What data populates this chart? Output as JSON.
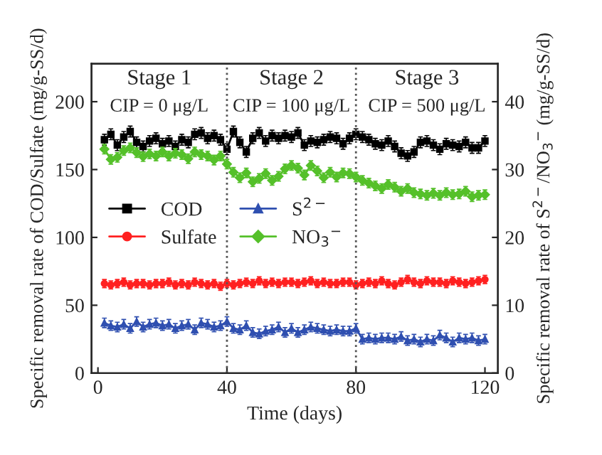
{
  "chart_data": {
    "type": "line",
    "xlabel": "Time (days)",
    "ylabel": "Specific removal rate of COD/Sulfate (mg/g-SS/d)",
    "y2label": "Specific removal rate of S$^{2−}$/NO$_{3}$$^{−}$ (mg/g-SS/d)",
    "x": [
      2,
      4,
      6,
      8,
      10,
      12,
      14,
      16,
      18,
      20,
      22,
      24,
      26,
      28,
      30,
      32,
      34,
      36,
      38,
      40,
      42,
      44,
      46,
      48,
      50,
      52,
      54,
      56,
      58,
      60,
      62,
      64,
      66,
      68,
      70,
      72,
      74,
      76,
      78,
      80,
      82,
      84,
      86,
      88,
      90,
      92,
      94,
      96,
      98,
      100,
      102,
      104,
      106,
      108,
      110,
      112,
      114,
      116,
      118,
      120
    ],
    "xlim": [
      -2,
      124
    ],
    "xticks": [
      0,
      40,
      80,
      120
    ],
    "ylim": [
      0,
      228
    ],
    "yticks": [
      0,
      50,
      100,
      150,
      200
    ],
    "y2lim": [
      0,
      45.6
    ],
    "y2ticks": [
      0,
      10,
      20,
      30,
      40
    ],
    "series": [
      {
        "name": "COD",
        "color": "#000000",
        "marker": "square",
        "errors": [
          4,
          4,
          4,
          4,
          4,
          4,
          4,
          4,
          4,
          4,
          4,
          4,
          4,
          4,
          4,
          4,
          4,
          4,
          4,
          4,
          4,
          4,
          4,
          4,
          4,
          4,
          4,
          4,
          4,
          4,
          4,
          4,
          4,
          4,
          4,
          4,
          4,
          4,
          4,
          4,
          4,
          4,
          4,
          4,
          4,
          4,
          4,
          4,
          4,
          4,
          4,
          4,
          4,
          4,
          4,
          4,
          4,
          4,
          4,
          4
        ],
        "values": [
          172,
          176,
          168,
          174,
          178,
          170,
          167,
          171,
          173,
          169,
          171,
          167,
          172,
          170,
          176,
          177,
          173,
          175,
          172,
          165,
          178,
          170,
          163,
          173,
          177,
          171,
          175,
          173,
          175,
          174,
          177,
          168,
          171,
          170,
          172,
          174,
          173,
          169,
          173,
          176,
          174,
          172,
          169,
          168,
          171,
          167,
          162,
          160,
          163,
          170,
          171,
          168,
          165,
          169,
          168,
          167,
          170,
          166,
          166,
          171
        ]
      },
      {
        "name": "Sulfate",
        "color": "#ff2020",
        "marker": "circle",
        "errors": [
          3,
          3,
          3,
          3,
          3,
          3,
          3,
          3,
          3,
          3,
          3,
          3,
          3,
          3,
          3,
          3,
          3,
          3,
          3,
          3,
          3,
          3,
          3,
          3,
          3,
          3,
          3,
          3,
          3,
          3,
          3,
          3,
          3,
          3,
          3,
          3,
          3,
          3,
          3,
          3,
          3,
          3,
          3,
          3,
          3,
          3,
          3,
          3,
          3,
          3,
          3,
          3,
          3,
          3,
          3,
          3,
          3,
          3,
          3,
          3
        ],
        "values": [
          66,
          65,
          66,
          67,
          65,
          66,
          66,
          65,
          66,
          66,
          67,
          65,
          66,
          65,
          67,
          66,
          65,
          66,
          64,
          66,
          65,
          66,
          67,
          66,
          68,
          66,
          67,
          66,
          67,
          67,
          66,
          67,
          68,
          66,
          67,
          66,
          66,
          67,
          67,
          65,
          66,
          67,
          66,
          68,
          66,
          65,
          67,
          69,
          67,
          66,
          68,
          67,
          67,
          66,
          68,
          67,
          66,
          67,
          68,
          69
        ]
      },
      {
        "name": "S$^{2−}$",
        "color": "#2f4fb0",
        "marker": "triangle",
        "axis": "y2",
        "errors": [
          0.7,
          0.7,
          0.7,
          0.7,
          0.7,
          0.7,
          0.7,
          0.7,
          0.7,
          0.7,
          0.7,
          0.7,
          0.7,
          0.7,
          0.7,
          0.7,
          0.7,
          0.7,
          0.7,
          0.7,
          0.7,
          0.7,
          0.7,
          0.7,
          0.7,
          0.7,
          0.7,
          0.7,
          0.7,
          0.7,
          0.7,
          0.7,
          0.7,
          0.7,
          0.7,
          0.7,
          0.7,
          0.7,
          0.7,
          0.7,
          0.7,
          0.7,
          0.7,
          0.7,
          0.7,
          0.7,
          0.7,
          0.7,
          0.7,
          0.7,
          0.7,
          0.7,
          0.7,
          0.7,
          0.7,
          0.7,
          0.7,
          0.7,
          0.7,
          0.7
        ],
        "values": [
          7.4,
          7.0,
          6.8,
          7.2,
          6.6,
          7.6,
          6.8,
          7.2,
          7.4,
          7.0,
          7.2,
          6.6,
          7.0,
          7.2,
          6.4,
          7.4,
          7.2,
          6.8,
          7.0,
          7.6,
          6.6,
          6.4,
          7.0,
          6.0,
          5.8,
          6.2,
          6.4,
          6.8,
          6.0,
          6.6,
          6.0,
          6.4,
          6.8,
          6.6,
          6.4,
          6.2,
          6.4,
          6.2,
          6.2,
          6.6,
          5.0,
          5.2,
          5.0,
          5.2,
          5.2,
          5.0,
          5.4,
          4.8,
          5.0,
          4.6,
          5.0,
          4.8,
          5.6,
          5.2,
          4.6,
          5.2,
          5.0,
          5.2,
          4.8,
          5.0
        ]
      },
      {
        "name": "NO$_{3}$$^{−}$",
        "color": "#55c02a",
        "marker": "diamond",
        "axis": "y2",
        "errors": [
          0.7,
          0.7,
          0.7,
          0.7,
          0.7,
          0.7,
          0.7,
          0.7,
          0.7,
          0.7,
          0.7,
          0.7,
          0.7,
          0.7,
          0.7,
          0.7,
          0.7,
          0.7,
          0.7,
          0.7,
          0.7,
          0.7,
          0.7,
          0.7,
          0.7,
          0.7,
          0.7,
          0.7,
          0.7,
          0.7,
          0.7,
          0.7,
          0.7,
          0.7,
          0.7,
          0.7,
          0.7,
          0.7,
          0.7,
          0.7,
          0.7,
          0.7,
          0.7,
          0.7,
          0.7,
          0.7,
          0.7,
          0.7,
          0.7,
          0.7,
          0.7,
          0.7,
          0.7,
          0.7,
          0.7,
          0.7,
          0.7,
          0.7,
          0.7,
          0.7
        ],
        "values": [
          33.0,
          31.5,
          31.8,
          32.8,
          33.2,
          32.5,
          31.9,
          32.3,
          32.0,
          32.6,
          32.0,
          32.4,
          32.2,
          31.6,
          32.6,
          32.2,
          32.0,
          31.4,
          32.0,
          30.8,
          29.6,
          28.8,
          29.5,
          28.2,
          28.7,
          29.4,
          28.4,
          29.0,
          30.1,
          30.6,
          30.2,
          29.2,
          30.6,
          29.8,
          28.8,
          29.6,
          28.9,
          29.5,
          29.4,
          28.9,
          28.4,
          28.0,
          27.6,
          27.2,
          27.8,
          27.4,
          26.8,
          27.2,
          26.6,
          26.4,
          26.2,
          26.5,
          26.2,
          26.6,
          26.3,
          26.4,
          26.8,
          26.0,
          26.2,
          26.3
        ]
      }
    ],
    "ref_lines": [
      {
        "axis": "x",
        "value": 40,
        "color": "#555555",
        "line_style": "dotted"
      },
      {
        "axis": "x",
        "value": 80,
        "color": "#555555",
        "line_style": "dotted"
      }
    ],
    "annotations": [
      "Stage 1",
      "CIP = 0 μg/L",
      "Stage 2",
      "CIP = 100 μg/L",
      "Stage 3",
      "CIP = 500 μg/L"
    ],
    "legend": "left",
    "grid": false
  }
}
